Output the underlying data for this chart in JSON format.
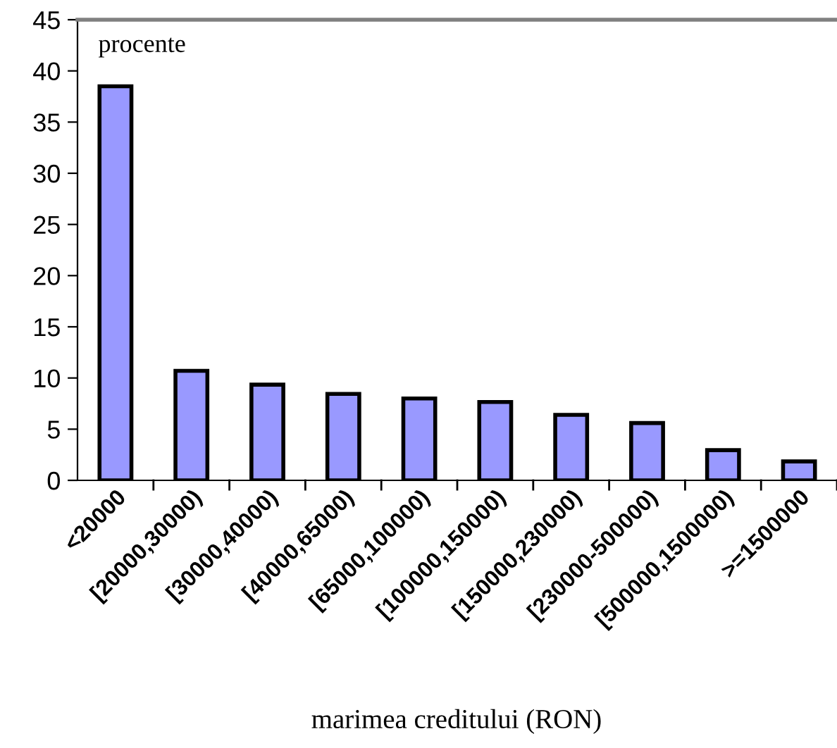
{
  "chart_data": {
    "type": "bar",
    "ylabel": "procente",
    "xlabel": "marimea creditului (RON)",
    "categories": [
      "<20000",
      "[20000,30000)",
      "[30000,40000)",
      "[40000,65000)",
      "[65000,100000)",
      "[100000,150000)",
      "[150000,230000)",
      "[230000-500000)",
      "[500000,1500000)",
      ">=1500000"
    ],
    "values": [
      38.5,
      10.7,
      9.35,
      8.45,
      8.0,
      7.65,
      6.4,
      5.6,
      2.95,
      1.85
    ],
    "color": "#9999ff",
    "ylim": [
      0,
      45
    ],
    "yticks": [
      0,
      5,
      10,
      15,
      20,
      25,
      30,
      35,
      40,
      45
    ],
    "grid": false,
    "legend": false
  }
}
